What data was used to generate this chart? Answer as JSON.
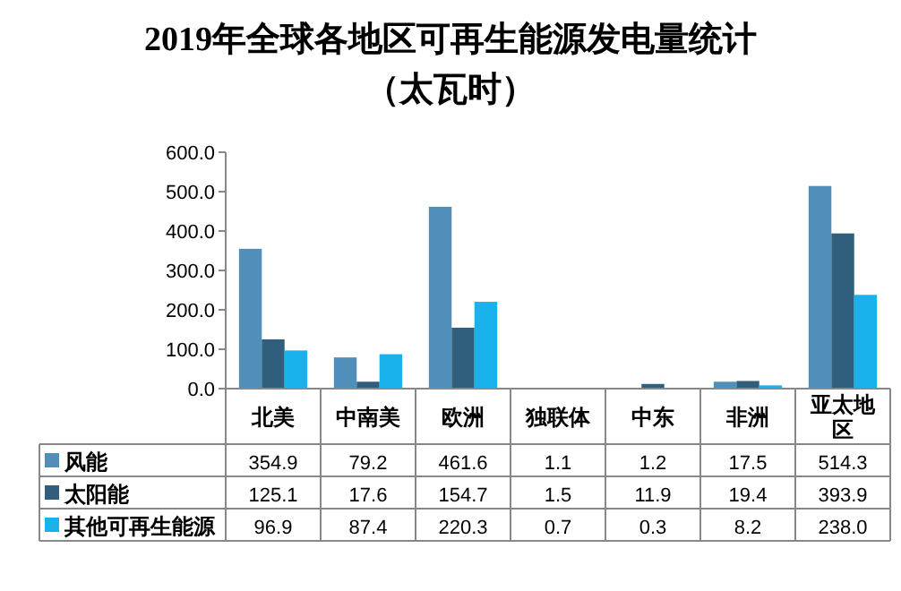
{
  "chart_data": {
    "type": "bar",
    "title": "2019年全球各地区可再生能源发电量统计",
    "subtitle": "（太瓦时）",
    "categories": [
      "北美",
      "中南美",
      "欧洲",
      "独联体",
      "中东",
      "非洲",
      "亚太地区"
    ],
    "series": [
      {
        "name": "风能",
        "color": "#4f8fba",
        "values": [
          354.9,
          79.2,
          461.6,
          1.1,
          1.2,
          17.5,
          514.3
        ],
        "value_labels": [
          "354.9",
          "79.2",
          "461.6",
          "1.1",
          "1.2",
          "17.5",
          "514.3"
        ]
      },
      {
        "name": "太阳能",
        "color": "#2f5f7c",
        "values": [
          125.1,
          17.6,
          154.7,
          1.5,
          11.9,
          19.4,
          393.9
        ],
        "value_labels": [
          "125.1",
          "17.6",
          "154.7",
          "1.5",
          "11.9",
          "19.4",
          "393.9"
        ]
      },
      {
        "name": "其他可再生能源",
        "color": "#19b2ec",
        "values": [
          96.9,
          87.4,
          220.3,
          0.7,
          0.3,
          8.2,
          238.0
        ],
        "value_labels": [
          "96.9",
          "87.4",
          "220.3",
          "0.7",
          "0.3",
          "8.2",
          "238.0"
        ]
      }
    ],
    "ylim": [
      0,
      600
    ],
    "yticks": [
      {
        "value": 0,
        "label": "0.0"
      },
      {
        "value": 100,
        "label": "100.0"
      },
      {
        "value": 200,
        "label": "200.0"
      },
      {
        "value": 300,
        "label": "300.0"
      },
      {
        "value": 400,
        "label": "400.0"
      },
      {
        "value": 500,
        "label": "500.0"
      },
      {
        "value": 600,
        "label": "600.0"
      }
    ],
    "legend": "bottom left"
  }
}
